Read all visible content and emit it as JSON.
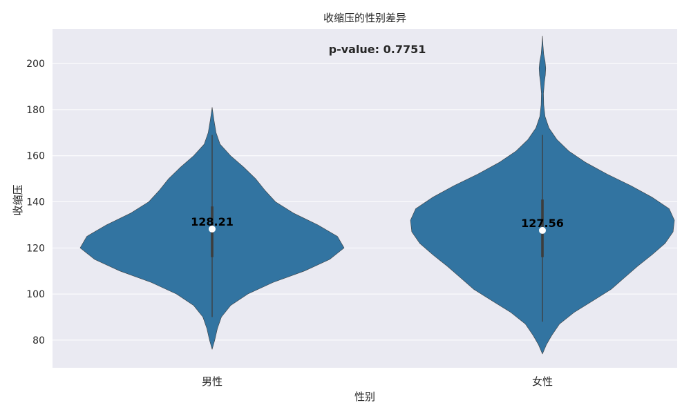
{
  "chart_data": {
    "type": "violin",
    "title": "收缩压的性别差异",
    "xlabel": "性别",
    "ylabel": "收缩压",
    "categories": [
      "男性",
      "女性"
    ],
    "ylim": [
      68,
      215
    ],
    "yticks": [
      80,
      100,
      120,
      140,
      160,
      180,
      200
    ],
    "grid": true,
    "annotation": "p-value: 0.7751",
    "colors": {
      "violin": "#3274a1",
      "background": "#eaeaf2",
      "grid": "#ffffff",
      "median": "#ffffff",
      "box": "#3d3d3d"
    },
    "groups": [
      {
        "category": "男性",
        "mean_label": "128.21",
        "mean": 128.21,
        "median": 128.2,
        "q1": 116,
        "q3": 138,
        "whisker_low": 90,
        "whisker_high": 169,
        "density": [
          [
            76,
            0.0
          ],
          [
            80,
            0.02
          ],
          [
            85,
            0.04
          ],
          [
            90,
            0.07
          ],
          [
            95,
            0.14
          ],
          [
            100,
            0.27
          ],
          [
            105,
            0.46
          ],
          [
            110,
            0.7
          ],
          [
            115,
            0.89
          ],
          [
            120,
            1.0
          ],
          [
            125,
            0.95
          ],
          [
            130,
            0.8
          ],
          [
            135,
            0.62
          ],
          [
            140,
            0.48
          ],
          [
            145,
            0.4
          ],
          [
            150,
            0.33
          ],
          [
            155,
            0.24
          ],
          [
            160,
            0.14
          ],
          [
            165,
            0.06
          ],
          [
            170,
            0.03
          ],
          [
            175,
            0.015
          ],
          [
            181,
            0.0
          ]
        ]
      },
      {
        "category": "女性",
        "mean_label": "127.56",
        "mean": 127.56,
        "median": 127.6,
        "q1": 116,
        "q3": 141,
        "whisker_low": 88,
        "whisker_high": 169,
        "density": [
          [
            74,
            0.0
          ],
          [
            78,
            0.03
          ],
          [
            82,
            0.07
          ],
          [
            87,
            0.13
          ],
          [
            92,
            0.24
          ],
          [
            97,
            0.38
          ],
          [
            102,
            0.52
          ],
          [
            107,
            0.62
          ],
          [
            112,
            0.72
          ],
          [
            117,
            0.83
          ],
          [
            122,
            0.93
          ],
          [
            127,
            0.99
          ],
          [
            132,
            1.0
          ],
          [
            137,
            0.96
          ],
          [
            142,
            0.83
          ],
          [
            147,
            0.67
          ],
          [
            152,
            0.49
          ],
          [
            157,
            0.33
          ],
          [
            162,
            0.2
          ],
          [
            167,
            0.11
          ],
          [
            172,
            0.05
          ],
          [
            177,
            0.02
          ],
          [
            182,
            0.01
          ],
          [
            187,
            0.008
          ],
          [
            192,
            0.015
          ],
          [
            195,
            0.022
          ],
          [
            198,
            0.025
          ],
          [
            201,
            0.02
          ],
          [
            204,
            0.01
          ],
          [
            208,
            0.004
          ],
          [
            212,
            0.0
          ]
        ]
      }
    ]
  }
}
